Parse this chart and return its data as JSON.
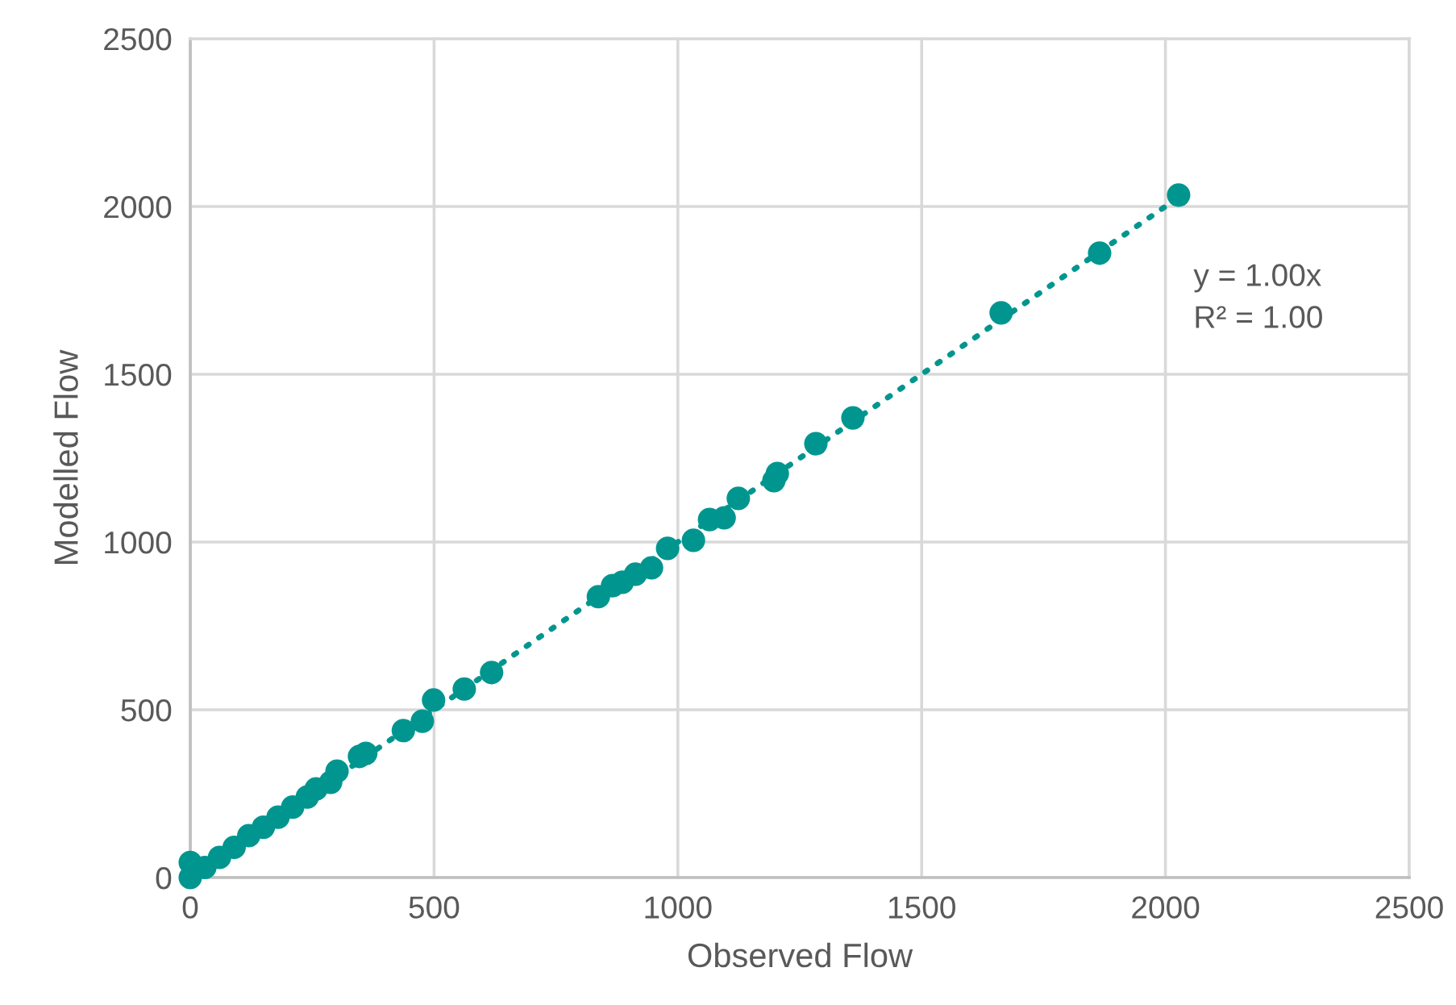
{
  "chart_data": {
    "type": "scatter",
    "xlabel": "Observed Flow",
    "ylabel": "Modelled Flow",
    "xlim": [
      0,
      2500
    ],
    "ylim": [
      0,
      2500
    ],
    "xticks": [
      0,
      500,
      1000,
      1500,
      2000,
      2500
    ],
    "yticks": [
      0,
      500,
      1000,
      1500,
      2000,
      2500
    ],
    "grid": true,
    "legend": false,
    "annotations": [
      "y = 1.00x",
      "R² = 1.00"
    ],
    "series": [
      {
        "color": "#00968f",
        "marker": "circle",
        "x": [
          0,
          0,
          30,
          60,
          90,
          120,
          150,
          180,
          210,
          240,
          258,
          288,
          301,
          347,
          360,
          437,
          476,
          499,
          562,
          618,
          837,
          866,
          886,
          913,
          946,
          979,
          1032,
          1065,
          1095,
          1124,
          1197,
          1204,
          1283,
          1359,
          1663,
          1865,
          2027
        ],
        "values": [
          0,
          45,
          30,
          60,
          90,
          125,
          150,
          180,
          210,
          240,
          264,
          284,
          317,
          361,
          370,
          438,
          466,
          529,
          562,
          611,
          837,
          870,
          880,
          904,
          923,
          981,
          1005,
          1067,
          1072,
          1130,
          1183,
          1204,
          1293,
          1370,
          1683,
          1861,
          2034
        ]
      },
      {
        "type": "line",
        "color": "#00968f",
        "line_style": "dotted",
        "x": [
          0,
          2027
        ],
        "values": [
          0,
          2027
        ]
      }
    ]
  }
}
